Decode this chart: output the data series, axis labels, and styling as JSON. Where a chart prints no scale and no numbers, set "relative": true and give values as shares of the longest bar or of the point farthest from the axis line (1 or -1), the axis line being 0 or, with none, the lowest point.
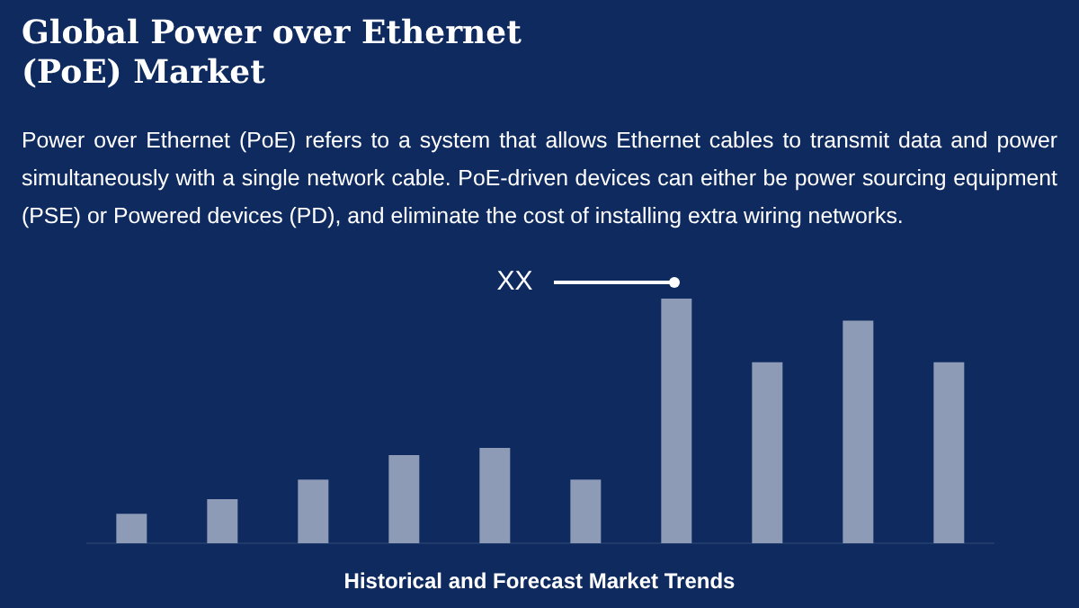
{
  "chart_data": {
    "type": "bar",
    "title": "Global Power over Ethernet (PoE) Market",
    "subtitle": "Power over Ethernet (PoE) refers to a system that allows Ethernet cables to transmit data and power simultaneously with a single network cable. PoE-driven devices can either be power sourcing equipment (PSE) or Powered devices (PD), and eliminate the cost of installing extra wiring networks.",
    "xlabel": "Historical and Forecast Market Trends",
    "annotations": [
      "XX"
    ],
    "categories": [
      null,
      null,
      null,
      null,
      null,
      null,
      null,
      null,
      null,
      null
    ],
    "values": [
      0.12,
      0.18,
      0.26,
      0.36,
      0.39,
      0.26,
      1,
      0.74,
      0.91,
      0.74
    ],
    "color": "#8d9bb6",
    "relative": true
  }
}
